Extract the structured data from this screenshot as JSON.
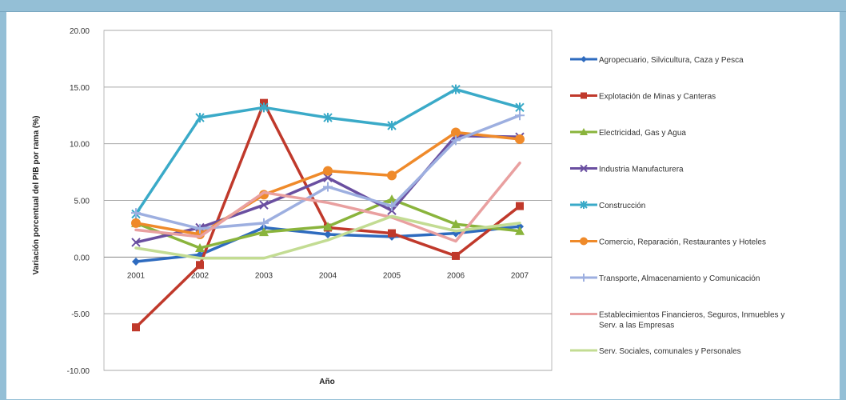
{
  "chart_data": {
    "type": "line",
    "title": "",
    "xlabel": "Año",
    "ylabel": "Variación porcentual del PIB por rama (%)",
    "ylim": [
      -10,
      20
    ],
    "yticks": [
      "20.00",
      "15.00",
      "10.00",
      "5.00",
      "0.00",
      "-5.00",
      "-10.00"
    ],
    "ytick_values": [
      20,
      15,
      10,
      5,
      0,
      -5,
      -10
    ],
    "categories": [
      "2001",
      "2002",
      "2003",
      "2004",
      "2005",
      "2006",
      "2007"
    ],
    "grid": "horizontal",
    "legend_position": "right",
    "series": [
      {
        "name": "Agropecuario, Silvicultura, Caza y Pesca",
        "color": "#2e6bbf",
        "marker": "diamond",
        "values": [
          -0.4,
          0.2,
          2.6,
          2.0,
          1.8,
          2.1,
          2.7
        ]
      },
      {
        "name": "Explotación de Minas y Canteras",
        "color": "#c0392b",
        "marker": "square",
        "values": [
          -6.2,
          -0.7,
          13.6,
          2.6,
          2.1,
          0.1,
          4.5
        ]
      },
      {
        "name": "Electricidad, Gas y Agua",
        "color": "#8ab43c",
        "marker": "triangle",
        "values": [
          3.0,
          0.8,
          2.2,
          2.7,
          5.1,
          2.9,
          2.3
        ]
      },
      {
        "name": "Industria Manufacturera",
        "color": "#6a4fa0",
        "marker": "x",
        "values": [
          1.3,
          2.6,
          4.6,
          7.0,
          4.1,
          10.7,
          10.6
        ]
      },
      {
        "name": "Construcción",
        "color": "#3aaac8",
        "marker": "star",
        "values": [
          3.8,
          12.3,
          13.2,
          12.3,
          11.6,
          14.8,
          13.2
        ]
      },
      {
        "name": "Comercio, Reparación, Restaurantes y Hoteles",
        "color": "#ef8a2a",
        "marker": "circle",
        "values": [
          3.0,
          2.0,
          5.5,
          7.6,
          7.2,
          11.0,
          10.4
        ]
      },
      {
        "name": "Transporte, Almacenamiento y Comunicación",
        "color": "#9dafe0",
        "marker": "plus",
        "values": [
          3.9,
          2.5,
          3.0,
          6.2,
          4.5,
          10.3,
          12.5
        ]
      },
      {
        "name": "Establecimientos Financieros, Seguros, Inmuebles y Serv. a las Empresas",
        "color": "#e9a0a0",
        "marker": "none",
        "values": [
          2.4,
          1.8,
          5.7,
          4.8,
          3.5,
          1.4,
          8.3
        ]
      },
      {
        "name": "Serv. Sociales, comunales y Personales",
        "color": "#c3dc93",
        "marker": "none",
        "values": [
          0.8,
          -0.1,
          -0.1,
          1.5,
          3.6,
          2.3,
          3.0
        ]
      }
    ]
  }
}
